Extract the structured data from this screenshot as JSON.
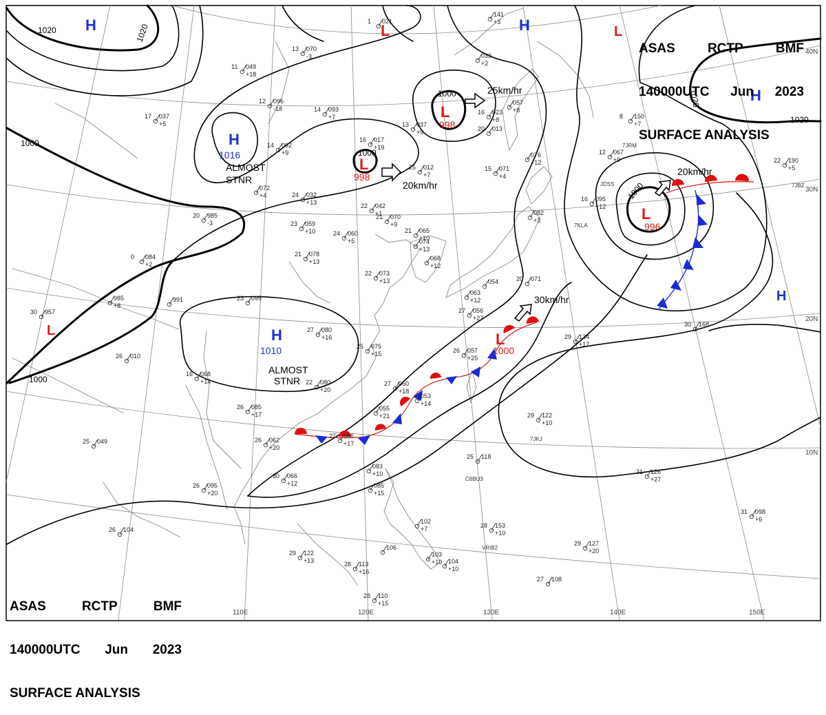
{
  "header": {
    "line1": [
      "ASAS",
      "RCTP",
      "BMF"
    ],
    "line2": [
      "140000UTC",
      "Jun",
      "2023"
    ],
    "line3": "SURFACE ANALYSIS"
  },
  "colors": {
    "high": "#1a33cc",
    "low": "#e01818",
    "cold_front": "#1a2bd8",
    "warm_front": "#e01010",
    "isobar": "#000000",
    "grid": "#888888",
    "coast": "#8a8a8a"
  },
  "lon_labels": [
    "110E",
    "120E",
    "130E",
    "140E",
    "150E"
  ],
  "lat_labels": [
    "40N",
    "30N",
    "20N",
    "10N"
  ],
  "isobars": [
    "1020",
    "1020",
    "1020",
    "1000",
    "1000",
    "1000",
    "1000",
    "1016",
    "1010",
    "1000",
    "1000",
    "1020"
  ],
  "pressure_centers": [
    {
      "type": "H",
      "value": "1016",
      "note1": "ALMOST",
      "note2": "STNR"
    },
    {
      "type": "H",
      "value": "1010",
      "note1": "ALMOST",
      "note2": "STNR"
    },
    {
      "type": "L",
      "value": "998",
      "motion": "20km/hr"
    },
    {
      "type": "L",
      "value": "998",
      "motion": "25km/hr"
    },
    {
      "type": "L",
      "value": "996",
      "motion": "20km/hr"
    },
    {
      "type": "L",
      "value": "1000",
      "motion": "30km/hr"
    },
    {
      "type": "H"
    },
    {
      "type": "H"
    },
    {
      "type": "H"
    },
    {
      "type": "H"
    },
    {
      "type": "L"
    },
    {
      "type": "L"
    },
    {
      "type": "L"
    }
  ],
  "stations": [
    {
      "t": "13",
      "p": "070",
      "d": "-3"
    },
    {
      "t": "11",
      "p": "049",
      "d": "+18"
    },
    {
      "t": "12",
      "p": "096",
      "d": "-18"
    },
    {
      "t": "14",
      "p": "093",
      "d": "+7"
    },
    {
      "t": "17",
      "p": "037",
      "d": "+5"
    },
    {
      "t": "14",
      "p": "092",
      "d": "+9"
    },
    {
      "t": "",
      "p": "072",
      "d": "+4"
    },
    {
      "t": "24",
      "p": "032",
      "d": "+13"
    },
    {
      "t": "20",
      "p": "985",
      "d": "-3"
    },
    {
      "t": "23",
      "p": "059",
      "d": "+10"
    },
    {
      "t": "24",
      "p": "060",
      "d": "+5"
    },
    {
      "t": "21",
      "p": "078",
      "d": "+13"
    },
    {
      "t": "0",
      "p": "084",
      "d": "+2"
    },
    {
      "t": "30",
      "p": "957",
      "d": ""
    },
    {
      "t": "",
      "p": "985",
      "d": "+8"
    },
    {
      "t": "",
      "p": "991",
      "d": ""
    },
    {
      "t": "23",
      "p": "095",
      "d": ""
    },
    {
      "t": "27",
      "p": "080",
      "d": "+16"
    },
    {
      "t": "25",
      "p": "075",
      "d": "+15"
    },
    {
      "t": "26",
      "p": "010",
      "d": ""
    },
    {
      "t": "16",
      "p": "068",
      "d": "+14"
    },
    {
      "t": "22",
      "p": "080",
      "d": "+20"
    },
    {
      "t": "26",
      "p": "085",
      "d": "+17"
    },
    {
      "t": "26",
      "p": "062",
      "d": "+20"
    },
    {
      "t": "25",
      "p": "049",
      "d": ""
    },
    {
      "t": "30",
      "p": "066",
      "d": "+12"
    },
    {
      "t": "26",
      "p": "095",
      "d": "+20"
    },
    {
      "t": "26",
      "p": "104",
      "d": ""
    },
    {
      "t": "29",
      "p": "122",
      "d": "+13"
    },
    {
      "t": "28",
      "p": "113",
      "d": "+16"
    },
    {
      "t": "28",
      "p": "110",
      "d": "+15"
    },
    {
      "t": "27",
      "p": "060",
      "d": "+18"
    },
    {
      "t": "",
      "p": "055",
      "d": "+21"
    },
    {
      "t": "27",
      "p": "066",
      "d": "+17"
    },
    {
      "t": "",
      "p": "053",
      "d": "+14"
    },
    {
      "t": "26",
      "p": "057",
      "d": "+25"
    },
    {
      "t": "",
      "p": "083",
      "d": "+10"
    },
    {
      "t": "",
      "p": "085",
      "d": "+15"
    },
    {
      "t": "",
      "p": "102",
      "d": "+7"
    },
    {
      "t": "",
      "p": "106",
      "d": ""
    },
    {
      "t": "",
      "p": "103",
      "d": "+10"
    },
    {
      "t": "",
      "p": "104",
      "d": "+10"
    },
    {
      "t": "28",
      "p": "153",
      "d": "+10"
    },
    {
      "t": "25",
      "p": "118",
      "d": ""
    },
    {
      "t": "29",
      "p": "122",
      "d": "+10"
    },
    {
      "t": "29",
      "p": "127",
      "d": "+20"
    },
    {
      "t": "27",
      "p": "108",
      "d": ""
    },
    {
      "t": "31",
      "p": "126",
      "d": "+27"
    },
    {
      "t": "31",
      "p": "098",
      "d": "+6"
    },
    {
      "t": "29",
      "p": "134",
      "d": "+17"
    },
    {
      "t": "30",
      "p": "168",
      "d": ""
    },
    {
      "t": "22",
      "p": "073",
      "d": "+13"
    },
    {
      "t": "21",
      "p": "070",
      "d": "+9"
    },
    {
      "t": "22",
      "p": "042",
      "d": "+1"
    },
    {
      "t": "25",
      "p": "012",
      "d": "+7"
    },
    {
      "t": "21",
      "p": "065",
      "d": "+10"
    },
    {
      "t": "",
      "p": "074",
      "d": "+13"
    },
    {
      "t": "",
      "p": "068",
      "d": "+12"
    },
    {
      "t": "",
      "p": "063",
      "d": "+12"
    },
    {
      "t": "27",
      "p": "056",
      "d": "+27"
    },
    {
      "t": "",
      "p": "054",
      "d": ""
    },
    {
      "t": "20",
      "p": "071",
      "d": ""
    },
    {
      "t": "15",
      "p": "071",
      "d": "+4"
    },
    {
      "t": "",
      "p": "076",
      "d": "+12"
    },
    {
      "t": "",
      "p": "082",
      "d": "+3"
    },
    {
      "t": "16",
      "p": "095",
      "d": "+12"
    },
    {
      "t": "12",
      "p": "067",
      "d": "+9"
    },
    {
      "t": "13",
      "p": "037",
      "d": "+9"
    },
    {
      "t": "16",
      "p": "017",
      "d": "+19"
    },
    {
      "t": "20",
      "p": "013",
      "d": ""
    },
    {
      "t": "16",
      "p": "023",
      "d": "+8"
    },
    {
      "t": "",
      "p": "057",
      "d": "+8"
    },
    {
      "t": "",
      "p": "039",
      "d": "+2"
    },
    {
      "t": "",
      "p": "141",
      "d": "+3"
    },
    {
      "t": "8",
      "p": "150",
      "d": "+7"
    },
    {
      "t": "22",
      "p": "190",
      "d": "+5"
    },
    {
      "t": "1",
      "p": "021",
      "d": ""
    }
  ],
  "call_signs": [
    "7JRM",
    "JDSS",
    "7KLA",
    "7JKJ",
    "C6BU3",
    "VRIB2",
    "7JBZ"
  ]
}
